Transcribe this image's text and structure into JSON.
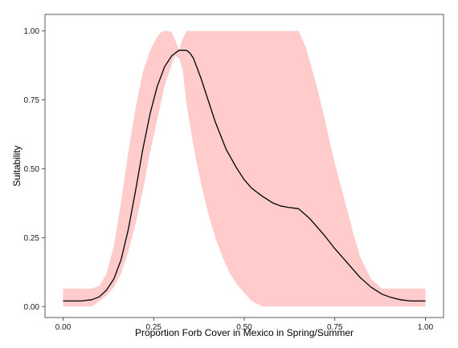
{
  "chart_data": {
    "type": "line",
    "title": "",
    "xlabel": "Proportion Forb Cover in Mexico in Spring/Summer",
    "ylabel": "Suitability",
    "xlim": [
      -0.05,
      1.05
    ],
    "ylim": [
      -0.04,
      1.06
    ],
    "x_ticks": [
      0.0,
      0.25,
      0.5,
      0.75,
      1.0
    ],
    "x_tick_labels": [
      "0.00",
      "0.25",
      "0.50",
      "0.75",
      "1.00"
    ],
    "y_ticks": [
      0.0,
      0.25,
      0.5,
      0.75,
      1.0
    ],
    "y_tick_labels": [
      "0.00",
      "0.25",
      "0.50",
      "0.75",
      "1.00"
    ],
    "grid": false,
    "legend": "none",
    "series": [
      {
        "x": [
          0.0,
          0.05,
          0.08,
          0.1,
          0.12,
          0.14,
          0.16,
          0.18,
          0.2,
          0.22,
          0.24,
          0.26,
          0.28,
          0.3,
          0.32,
          0.34,
          0.35,
          0.36,
          0.38,
          0.4,
          0.42,
          0.45,
          0.48,
          0.5,
          0.52,
          0.55,
          0.58,
          0.6,
          0.62,
          0.65,
          0.68,
          0.7,
          0.72,
          0.75,
          0.78,
          0.8,
          0.82,
          0.85,
          0.88,
          0.9,
          0.93,
          0.96,
          1.0
        ],
        "values": [
          0.02,
          0.02,
          0.025,
          0.035,
          0.06,
          0.1,
          0.17,
          0.28,
          0.42,
          0.57,
          0.7,
          0.8,
          0.87,
          0.91,
          0.93,
          0.93,
          0.92,
          0.9,
          0.83,
          0.75,
          0.67,
          0.57,
          0.5,
          0.46,
          0.43,
          0.4,
          0.375,
          0.365,
          0.36,
          0.355,
          0.32,
          0.29,
          0.26,
          0.21,
          0.165,
          0.135,
          0.105,
          0.07,
          0.045,
          0.035,
          0.025,
          0.02,
          0.02
        ],
        "color": "#000000"
      }
    ],
    "band": {
      "x": [
        0.0,
        0.08,
        0.1,
        0.12,
        0.14,
        0.16,
        0.18,
        0.2,
        0.22,
        0.24,
        0.26,
        0.27,
        0.28,
        0.29,
        0.3,
        0.31,
        0.32,
        0.33,
        0.34,
        0.36,
        0.38,
        0.4,
        0.42,
        0.44,
        0.46,
        0.48,
        0.5,
        0.52,
        0.55,
        0.58,
        0.6,
        0.62,
        0.64,
        0.65,
        0.67,
        0.7,
        0.72,
        0.75,
        0.78,
        0.8,
        0.82,
        0.85,
        0.88,
        0.9,
        1.0
      ],
      "lower": [
        0.0,
        0.0,
        0.02,
        0.04,
        0.07,
        0.12,
        0.2,
        0.3,
        0.42,
        0.56,
        0.68,
        0.74,
        0.8,
        0.84,
        0.88,
        0.91,
        0.9,
        0.86,
        0.74,
        0.58,
        0.45,
        0.34,
        0.25,
        0.18,
        0.12,
        0.08,
        0.05,
        0.02,
        0.0,
        0.0,
        0.0,
        0.0,
        0.0,
        0.0,
        0.0,
        0.0,
        0.0,
        0.0,
        0.0,
        0.0,
        0.0,
        0.0,
        0.0,
        0.0,
        0.0
      ],
      "upper": [
        0.065,
        0.065,
        0.075,
        0.12,
        0.22,
        0.38,
        0.56,
        0.72,
        0.85,
        0.93,
        0.98,
        0.995,
        1.0,
        1.0,
        0.995,
        0.965,
        0.93,
        0.97,
        1.0,
        1.0,
        1.0,
        1.0,
        1.0,
        1.0,
        1.0,
        1.0,
        1.0,
        1.0,
        1.0,
        1.0,
        1.0,
        1.0,
        1.0,
        1.0,
        0.94,
        0.8,
        0.69,
        0.52,
        0.37,
        0.27,
        0.18,
        0.1,
        0.065,
        0.065,
        0.065
      ],
      "color": "#ffcccb"
    }
  }
}
